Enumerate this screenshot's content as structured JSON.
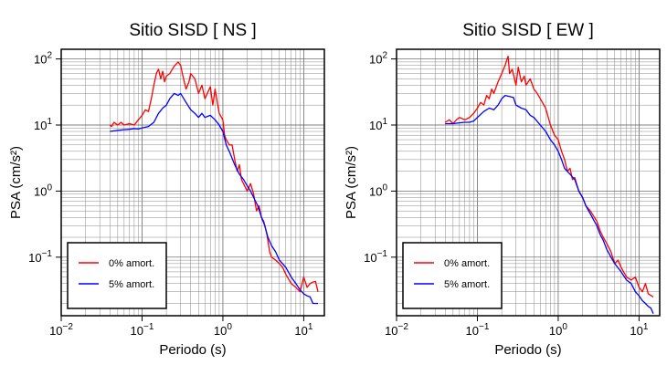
{
  "chart_data": [
    {
      "type": "line",
      "title": "Sitio SISD [ NS ]",
      "xlabel": "Periodo (s)",
      "ylabel": "PSA (cm/s²)",
      "xscale": "log",
      "yscale": "log",
      "xlim": [
        0.01,
        18
      ],
      "ylim": [
        0.013,
        140
      ],
      "xticks": [
        {
          "value": 0.01,
          "base": "10",
          "exp": "−2"
        },
        {
          "value": 0.1,
          "base": "10",
          "exp": "−1"
        },
        {
          "value": 1,
          "base": "10",
          "exp": "0"
        },
        {
          "value": 10,
          "base": "10",
          "exp": "1"
        }
      ],
      "yticks": [
        {
          "value": 0.1,
          "base": "10",
          "exp": "−1"
        },
        {
          "value": 1,
          "base": "10",
          "exp": "0"
        },
        {
          "value": 10,
          "base": "10",
          "exp": "1"
        },
        {
          "value": 100,
          "base": "10",
          "exp": "2"
        }
      ],
      "grid": true,
      "legend_position": "bottom-left",
      "series": [
        {
          "name": "0% amort.",
          "color": "#ff0000",
          "points": [
            [
              0.04,
              10
            ],
            [
              0.042,
              9.5
            ],
            [
              0.045,
              11
            ],
            [
              0.05,
              10
            ],
            [
              0.055,
              11
            ],
            [
              0.06,
              10
            ],
            [
              0.07,
              10.5
            ],
            [
              0.08,
              10
            ],
            [
              0.09,
              12
            ],
            [
              0.1,
              14
            ],
            [
              0.11,
              17
            ],
            [
              0.12,
              16
            ],
            [
              0.13,
              25
            ],
            [
              0.14,
              40
            ],
            [
              0.15,
              60
            ],
            [
              0.16,
              70
            ],
            [
              0.17,
              50
            ],
            [
              0.18,
              65
            ],
            [
              0.19,
              45
            ],
            [
              0.2,
              55
            ],
            [
              0.22,
              60
            ],
            [
              0.25,
              78
            ],
            [
              0.28,
              90
            ],
            [
              0.3,
              80
            ],
            [
              0.32,
              55
            ],
            [
              0.35,
              35
            ],
            [
              0.38,
              45
            ],
            [
              0.4,
              60
            ],
            [
              0.45,
              50
            ],
            [
              0.5,
              30
            ],
            [
              0.55,
              40
            ],
            [
              0.6,
              25
            ],
            [
              0.7,
              38
            ],
            [
              0.75,
              20
            ],
            [
              0.8,
              35
            ],
            [
              0.9,
              15
            ],
            [
              1.0,
              12
            ],
            [
              1.05,
              7
            ],
            [
              1.1,
              6
            ],
            [
              1.2,
              5
            ],
            [
              1.3,
              5
            ],
            [
              1.4,
              3
            ],
            [
              1.5,
              2
            ],
            [
              1.6,
              2.5
            ],
            [
              1.7,
              1.5
            ],
            [
              1.8,
              1.3
            ],
            [
              2.0,
              1.0
            ],
            [
              2.2,
              1.3
            ],
            [
              2.4,
              0.9
            ],
            [
              2.6,
              0.5
            ],
            [
              2.8,
              0.6
            ],
            [
              3.0,
              0.4
            ],
            [
              3.2,
              0.35
            ],
            [
              3.5,
              0.22
            ],
            [
              3.8,
              0.12
            ],
            [
              4.0,
              0.1
            ],
            [
              4.5,
              0.09
            ],
            [
              5.0,
              0.08
            ],
            [
              5.5,
              0.07
            ],
            [
              6.0,
              0.055
            ],
            [
              7.0,
              0.04
            ],
            [
              8.0,
              0.035
            ],
            [
              9.0,
              0.03
            ],
            [
              10,
              0.05
            ],
            [
              11,
              0.035
            ],
            [
              12,
              0.04
            ],
            [
              13,
              0.042
            ],
            [
              14,
              0.043
            ],
            [
              15,
              0.03
            ]
          ]
        },
        {
          "name": "5% amort.",
          "color": "#0000ff",
          "points": [
            [
              0.04,
              8
            ],
            [
              0.05,
              8.3
            ],
            [
              0.06,
              8.5
            ],
            [
              0.07,
              8.6
            ],
            [
              0.08,
              8.8
            ],
            [
              0.09,
              8.7
            ],
            [
              0.1,
              9
            ],
            [
              0.12,
              9.5
            ],
            [
              0.14,
              11
            ],
            [
              0.16,
              15
            ],
            [
              0.18,
              18
            ],
            [
              0.2,
              20
            ],
            [
              0.22,
              25
            ],
            [
              0.25,
              30
            ],
            [
              0.28,
              28
            ],
            [
              0.3,
              30
            ],
            [
              0.35,
              22
            ],
            [
              0.4,
              17
            ],
            [
              0.45,
              15
            ],
            [
              0.5,
              13
            ],
            [
              0.55,
              15
            ],
            [
              0.6,
              13
            ],
            [
              0.7,
              14
            ],
            [
              0.8,
              12
            ],
            [
              0.9,
              10
            ],
            [
              1.0,
              8
            ],
            [
              1.1,
              5
            ],
            [
              1.2,
              4
            ],
            [
              1.4,
              2.5
            ],
            [
              1.6,
              1.8
            ],
            [
              1.8,
              1.5
            ],
            [
              2.0,
              1.2
            ],
            [
              2.2,
              1.0
            ],
            [
              2.4,
              0.8
            ],
            [
              2.7,
              0.6
            ],
            [
              3.0,
              0.4
            ],
            [
              3.3,
              0.3
            ],
            [
              3.6,
              0.2
            ],
            [
              4.0,
              0.15
            ],
            [
              4.5,
              0.12
            ],
            [
              5.0,
              0.09
            ],
            [
              6.0,
              0.07
            ],
            [
              7.0,
              0.05
            ],
            [
              8.0,
              0.04
            ],
            [
              9.0,
              0.032
            ],
            [
              10,
              0.028
            ],
            [
              11,
              0.026
            ],
            [
              12,
              0.025
            ],
            [
              13,
              0.02
            ],
            [
              15,
              0.02
            ]
          ]
        }
      ]
    },
    {
      "type": "line",
      "title": "Sitio SISD [ EW ]",
      "xlabel": "Periodo (s)",
      "ylabel": "PSA (cm/s²)",
      "xscale": "log",
      "yscale": "log",
      "xlim": [
        0.01,
        18
      ],
      "ylim": [
        0.013,
        140
      ],
      "xticks": [
        {
          "value": 0.01,
          "base": "10",
          "exp": "−2"
        },
        {
          "value": 0.1,
          "base": "10",
          "exp": "−1"
        },
        {
          "value": 1,
          "base": "10",
          "exp": "0"
        },
        {
          "value": 10,
          "base": "10",
          "exp": "1"
        }
      ],
      "yticks": [
        {
          "value": 0.1,
          "base": "10",
          "exp": "−1"
        },
        {
          "value": 1,
          "base": "10",
          "exp": "0"
        },
        {
          "value": 10,
          "base": "10",
          "exp": "1"
        },
        {
          "value": 100,
          "base": "10",
          "exp": "2"
        }
      ],
      "grid": true,
      "legend_position": "bottom-left",
      "series": [
        {
          "name": "0% amort.",
          "color": "#ff0000",
          "points": [
            [
              0.04,
              11
            ],
            [
              0.045,
              12
            ],
            [
              0.05,
              10.5
            ],
            [
              0.055,
              12
            ],
            [
              0.06,
              13
            ],
            [
              0.07,
              12
            ],
            [
              0.08,
              13
            ],
            [
              0.09,
              15
            ],
            [
              0.1,
              18
            ],
            [
              0.11,
              22
            ],
            [
              0.12,
              20
            ],
            [
              0.13,
              28
            ],
            [
              0.14,
              25
            ],
            [
              0.15,
              35
            ],
            [
              0.16,
              30
            ],
            [
              0.18,
              45
            ],
            [
              0.2,
              60
            ],
            [
              0.22,
              80
            ],
            [
              0.24,
              110
            ],
            [
              0.25,
              60
            ],
            [
              0.27,
              70
            ],
            [
              0.3,
              40
            ],
            [
              0.32,
              75
            ],
            [
              0.35,
              45
            ],
            [
              0.38,
              55
            ],
            [
              0.4,
              40
            ],
            [
              0.45,
              50
            ],
            [
              0.5,
              35
            ],
            [
              0.55,
              30
            ],
            [
              0.6,
              25
            ],
            [
              0.7,
              18
            ],
            [
              0.8,
              10
            ],
            [
              0.9,
              7
            ],
            [
              1.0,
              6
            ],
            [
              1.1,
              4
            ],
            [
              1.2,
              3
            ],
            [
              1.3,
              2
            ],
            [
              1.4,
              2.2
            ],
            [
              1.5,
              1.5
            ],
            [
              1.6,
              1.6
            ],
            [
              1.8,
              1.0
            ],
            [
              2.0,
              0.8
            ],
            [
              2.2,
              0.6
            ],
            [
              2.5,
              0.5
            ],
            [
              2.8,
              0.4
            ],
            [
              3.0,
              0.35
            ],
            [
              3.3,
              0.25
            ],
            [
              3.6,
              0.2
            ],
            [
              4.0,
              0.16
            ],
            [
              4.5,
              0.12
            ],
            [
              5.0,
              0.08
            ],
            [
              5.5,
              0.09
            ],
            [
              6.0,
              0.07
            ],
            [
              7.0,
              0.05
            ],
            [
              8.0,
              0.045
            ],
            [
              9.0,
              0.05
            ],
            [
              10,
              0.035
            ],
            [
              11,
              0.03
            ],
            [
              12,
              0.04
            ],
            [
              13,
              0.028
            ],
            [
              15,
              0.025
            ]
          ]
        },
        {
          "name": "5% amort.",
          "color": "#0000ff",
          "points": [
            [
              0.04,
              10.5
            ],
            [
              0.05,
              10.5
            ],
            [
              0.06,
              10.8
            ],
            [
              0.07,
              11
            ],
            [
              0.08,
              11
            ],
            [
              0.09,
              11.5
            ],
            [
              0.1,
              13
            ],
            [
              0.12,
              16
            ],
            [
              0.14,
              18
            ],
            [
              0.16,
              17
            ],
            [
              0.18,
              20
            ],
            [
              0.2,
              25
            ],
            [
              0.22,
              28
            ],
            [
              0.25,
              27
            ],
            [
              0.28,
              26
            ],
            [
              0.3,
              20
            ],
            [
              0.35,
              18
            ],
            [
              0.4,
              17
            ],
            [
              0.45,
              14
            ],
            [
              0.5,
              13
            ],
            [
              0.6,
              10
            ],
            [
              0.7,
              8
            ],
            [
              0.8,
              6
            ],
            [
              0.9,
              5
            ],
            [
              1.0,
              4
            ],
            [
              1.1,
              3
            ],
            [
              1.2,
              2.2
            ],
            [
              1.4,
              1.8
            ],
            [
              1.6,
              1.5
            ],
            [
              1.8,
              1.0
            ],
            [
              2.0,
              0.8
            ],
            [
              2.2,
              0.6
            ],
            [
              2.5,
              0.45
            ],
            [
              2.8,
              0.35
            ],
            [
              3.0,
              0.3
            ],
            [
              3.3,
              0.22
            ],
            [
              3.6,
              0.18
            ],
            [
              4.0,
              0.13
            ],
            [
              4.5,
              0.1
            ],
            [
              5.0,
              0.08
            ],
            [
              6.0,
              0.06
            ],
            [
              7.0,
              0.045
            ],
            [
              8.0,
              0.04
            ],
            [
              9.0,
              0.03
            ],
            [
              10,
              0.026
            ],
            [
              11,
              0.022
            ],
            [
              12,
              0.02
            ],
            [
              13,
              0.018
            ],
            [
              14,
              0.017
            ],
            [
              15,
              0.014
            ]
          ]
        }
      ]
    }
  ]
}
